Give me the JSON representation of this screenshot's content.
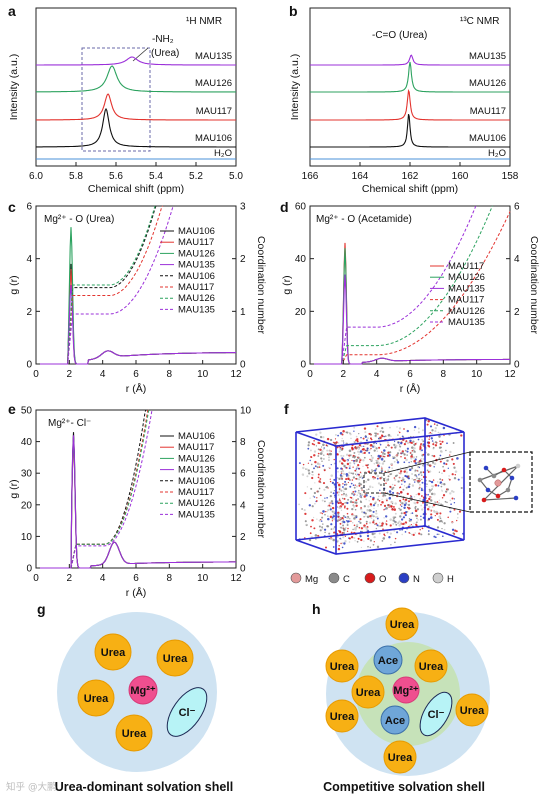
{
  "panels": {
    "a": {
      "letter": "a",
      "label": "¹H NMR",
      "ylabel": "Intensity (a.u.)",
      "xlabel": "Chemical shift (ppm)",
      "annotation_line1": "-NH₂",
      "annotation_line2": "(Urea)"
    },
    "b": {
      "letter": "b",
      "label": "¹³C NMR",
      "ylabel": "Intensity (a.u.)",
      "xlabel": "Chemical shift (ppm)",
      "annotation": "-C=O (Urea)"
    },
    "c": {
      "letter": "c",
      "title": "Mg²⁺ - O (Urea)",
      "ylabel": "g (r)",
      "y2label": "Coordination number",
      "xlabel": "r (Å)"
    },
    "d": {
      "letter": "d",
      "title": "Mg²⁺ - O (Acetamide)",
      "ylabel": "g (r)",
      "y2label": "Coordination number",
      "xlabel": "r (Å)"
    },
    "e": {
      "letter": "e",
      "title": "Mg²⁺- Cl⁻",
      "ylabel": "g (r)",
      "y2label": "Coordination number",
      "xlabel": "r (Å)"
    },
    "f": {
      "letter": "f",
      "legend": [
        {
          "label": "Mg",
          "color": "#e39a9a"
        },
        {
          "label": "C",
          "color": "#8a8a8a"
        },
        {
          "label": "O",
          "color": "#d81b1b"
        },
        {
          "label": "N",
          "color": "#2b3fc4"
        },
        {
          "label": "H",
          "color": "#cfcfcf"
        }
      ]
    },
    "g": {
      "letter": "g",
      "caption": "Urea-dominant solvation shell",
      "urea": "Urea",
      "mg": "Mg²⁺",
      "cl": "Cl⁻"
    },
    "h": {
      "letter": "h",
      "caption": "Competitive solvation shell",
      "urea": "Urea",
      "ace": "Ace",
      "mg": "Mg²⁺",
      "cl": "Cl⁻"
    },
    "watermark": "知乎 @大鹏"
  },
  "chart_data": [
    {
      "id": "a",
      "type": "line",
      "xlim": [
        6.0,
        5.0
      ],
      "xticks": [
        "6.0",
        "5.8",
        "5.6",
        "5.4",
        "5.2",
        "5.0"
      ],
      "series": [
        {
          "name": "MAU135",
          "color": "#9b30d9",
          "peak": 5.52,
          "height": 0.35
        },
        {
          "name": "MAU126",
          "color": "#2ca25f",
          "peak": 5.62,
          "height": 0.7
        },
        {
          "name": "MAU117",
          "color": "#e3342f",
          "peak": 5.64,
          "height": 0.9
        },
        {
          "name": "MAU106",
          "color": "#111111",
          "peak": 5.65,
          "height": 1.0
        },
        {
          "name": "H₂O",
          "color": "#4a90d9",
          "peak": null,
          "height": 0
        }
      ]
    },
    {
      "id": "b",
      "type": "line",
      "xlim": [
        166,
        158
      ],
      "xticks": [
        "166",
        "164",
        "162",
        "160",
        "158"
      ],
      "series": [
        {
          "name": "MAU135",
          "color": "#9b30d9",
          "peak": 161.95,
          "height": 0.5
        },
        {
          "name": "MAU126",
          "color": "#2ca25f",
          "peak": 162.0,
          "height": 0.9
        },
        {
          "name": "MAU117",
          "color": "#e3342f",
          "peak": 162.05,
          "height": 0.95
        },
        {
          "name": "MAU106",
          "color": "#111111",
          "peak": 162.05,
          "height": 1.0
        },
        {
          "name": "H₂O",
          "color": "#4a90d9",
          "peak": null,
          "height": 0
        }
      ]
    },
    {
      "id": "c",
      "type": "line",
      "xlim": [
        0,
        12
      ],
      "ylim": [
        0,
        6
      ],
      "y2lim": [
        0,
        3
      ],
      "xticks": [
        "0",
        "2",
        "4",
        "6",
        "8",
        "10",
        "12"
      ],
      "yticks": [
        "0",
        "2",
        "4",
        "6"
      ],
      "y2ticks": [
        "0",
        "1",
        "2",
        "3"
      ],
      "series": [
        {
          "name": "MAU106",
          "color": "#111111",
          "style": "solid",
          "peak": 3.8,
          "cn": 0.9
        },
        {
          "name": "MAU117",
          "color": "#e3342f",
          "style": "solid",
          "peak": 3.6,
          "cn": 0.9
        },
        {
          "name": "MAU126",
          "color": "#2ca25f",
          "style": "solid",
          "peak": 5.2,
          "cn": 0.9
        },
        {
          "name": "MAU135",
          "color": "#9b30d9",
          "style": "solid",
          "peak": 3.0,
          "cn": 0.9
        },
        {
          "name": "MAU106",
          "color": "#111111",
          "style": "dashed",
          "plateau": 1.45
        },
        {
          "name": "MAU117",
          "color": "#e3342f",
          "style": "dashed",
          "plateau": 1.3
        },
        {
          "name": "MAU126",
          "color": "#2ca25f",
          "style": "dashed",
          "plateau": 1.5
        },
        {
          "name": "MAU135",
          "color": "#9b30d9",
          "style": "dashed",
          "plateau": 0.95
        }
      ]
    },
    {
      "id": "d",
      "type": "line",
      "xlim": [
        0,
        12
      ],
      "ylim": [
        0,
        60
      ],
      "y2lim": [
        0,
        6
      ],
      "xticks": [
        "0",
        "2",
        "4",
        "6",
        "8",
        "10",
        "12"
      ],
      "yticks": [
        "0",
        "20",
        "40",
        "60"
      ],
      "y2ticks": [
        "0",
        "2",
        "4",
        "6"
      ],
      "series": [
        {
          "name": "MAU117",
          "color": "#e3342f",
          "style": "solid",
          "peak": 46
        },
        {
          "name": "MAU126",
          "color": "#2ca25f",
          "style": "solid",
          "peak": 44
        },
        {
          "name": "MAU135",
          "color": "#9b30d9",
          "style": "solid",
          "peak": 34
        },
        {
          "name": "MAU117",
          "color": "#e3342f",
          "style": "dashed",
          "plateau": 0.35
        },
        {
          "name": "MAU126",
          "color": "#2ca25f",
          "style": "dashed",
          "plateau": 0.7
        },
        {
          "name": "MAU135",
          "color": "#9b30d9",
          "style": "dashed",
          "plateau": 1.4
        }
      ]
    },
    {
      "id": "e",
      "type": "line",
      "xlim": [
        0,
        12
      ],
      "ylim": [
        0,
        50
      ],
      "y2lim": [
        0,
        10
      ],
      "xticks": [
        "0",
        "2",
        "4",
        "6",
        "8",
        "10",
        "12"
      ],
      "yticks": [
        "0",
        "10",
        "20",
        "30",
        "40",
        "50"
      ],
      "y2ticks": [
        "0",
        "2",
        "4",
        "6",
        "8",
        "10"
      ],
      "series": [
        {
          "name": "MAU106",
          "color": "#111111",
          "style": "solid",
          "peak": 43
        },
        {
          "name": "MAU117",
          "color": "#e3342f",
          "style": "solid",
          "peak": 40
        },
        {
          "name": "MAU126",
          "color": "#2ca25f",
          "style": "solid",
          "peak": 41
        },
        {
          "name": "MAU135",
          "color": "#9b30d9",
          "style": "solid",
          "peak": 42
        },
        {
          "name": "MAU106",
          "color": "#111111",
          "style": "dashed",
          "plateau": 1.5
        },
        {
          "name": "MAU117",
          "color": "#e3342f",
          "style": "dashed",
          "plateau": 1.5
        },
        {
          "name": "MAU126",
          "color": "#2ca25f",
          "style": "dashed",
          "plateau": 1.5
        },
        {
          "name": "MAU135",
          "color": "#9b30d9",
          "style": "dashed",
          "plateau": 1.4
        }
      ]
    }
  ]
}
